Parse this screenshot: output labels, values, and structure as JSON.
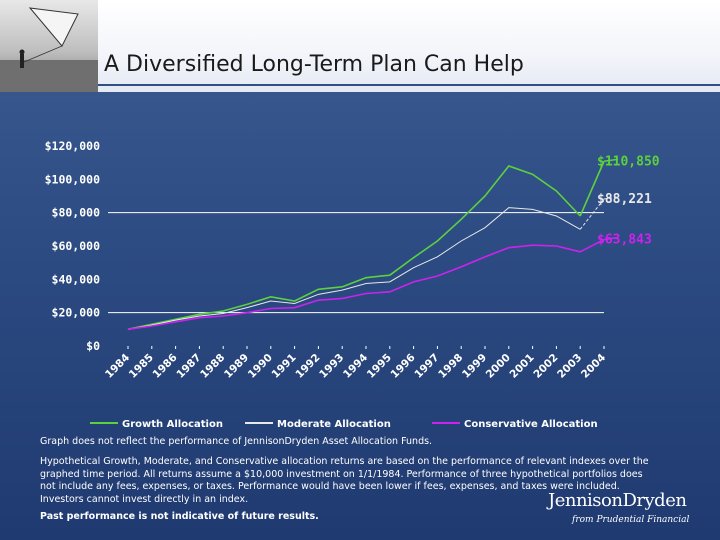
{
  "page": {
    "title": "A Diversified Long-Term Plan Can Help",
    "notes": {
      "disclaimer_1": "Graph does not reflect the performance of JennisonDryden Asset Allocation Funds.",
      "disclaimer_2": "Hypothetical Growth, Moderate, and Conservative allocation returns are based on the performance of relevant indexes over the graphed time period. All returns assume a $10,000 investment on 1/1/1984. Performance of three hypothetical portfolios does not include any fees, expenses, or taxes. Performance would have been lower if fees, expenses, and taxes were included. Investors cannot invest directly in an index.",
      "past_performance": "Past performance is not indicative of future results."
    },
    "logo": {
      "name": "JennisonDryden",
      "tagline": "from Prudential Financial"
    }
  },
  "colors": {
    "growth": "#5cd13e",
    "moderate": "#e8e8e8",
    "conservative": "#cc22ee",
    "axis_text": "#ffffff",
    "reference_lines": "#ffffff"
  },
  "chart_data": {
    "type": "line",
    "title": "",
    "xlabel": "",
    "ylabel": "",
    "x": [
      "1984",
      "1985",
      "1986",
      "1987",
      "1988",
      "1989",
      "1990",
      "1991",
      "1992",
      "1993",
      "1994",
      "1995",
      "1996",
      "1997",
      "1998",
      "1999",
      "2000",
      "2001",
      "2002",
      "2003",
      "2004"
    ],
    "ylim": [
      0,
      120000
    ],
    "yticks": [
      0,
      20000,
      40000,
      60000,
      80000,
      100000,
      120000
    ],
    "ytick_labels": [
      "$0",
      "$20,000",
      "$40,000",
      "$60,000",
      "$80,000",
      "$100,000",
      "$120,000"
    ],
    "reference_lines": [
      20000,
      80000
    ],
    "grid": false,
    "legend_position": "bottom",
    "series": [
      {
        "name": "Growth Allocation",
        "color_key": "growth",
        "style": "solid",
        "end_label": "$110,850",
        "values": [
          10000,
          13000,
          16000,
          19000,
          21000,
          25000,
          29500,
          27000,
          34000,
          35500,
          41000,
          42500,
          53000,
          63000,
          76000,
          90000,
          108000,
          103000,
          93000,
          78000,
          110850
        ]
      },
      {
        "name": "Moderate Allocation",
        "color_key": "moderate",
        "style": "dashed",
        "end_label": "$88,221",
        "values": [
          10000,
          12500,
          15500,
          18000,
          19500,
          23000,
          27000,
          25500,
          31000,
          33500,
          37500,
          38500,
          47000,
          53500,
          63000,
          71000,
          83000,
          82000,
          78000,
          70000,
          88221
        ]
      },
      {
        "name": "Conservative Allocation",
        "color_key": "conservative",
        "style": "solid",
        "end_label": "$63,843",
        "values": [
          10000,
          12000,
          14500,
          17000,
          18000,
          20000,
          22500,
          23000,
          27500,
          28500,
          31500,
          32500,
          38500,
          42000,
          47500,
          53500,
          59000,
          60500,
          60000,
          56500,
          63843
        ]
      }
    ]
  }
}
